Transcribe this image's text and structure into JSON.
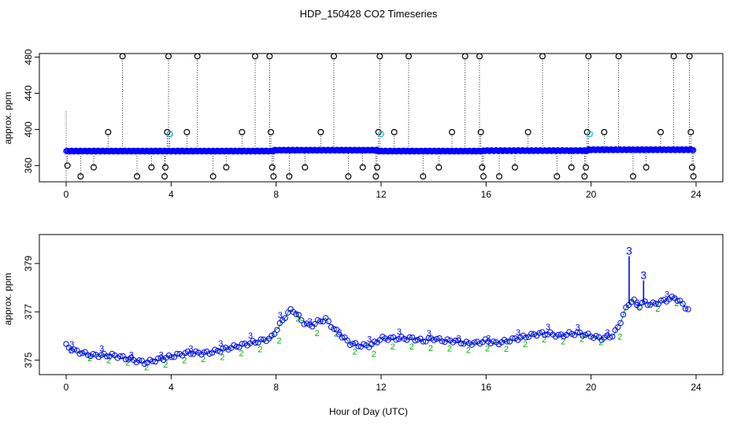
{
  "title": "HDP_150428  CO2 Timeseries",
  "xlabel": "Hour of Day (UTC)",
  "colors": {
    "primary": "#0000ff",
    "secondary": "#00c8c8",
    "outlier": "#000000",
    "series2": "#00b000",
    "series3": "#0000ff"
  },
  "chart_data": [
    {
      "type": "scatter",
      "title": "HDP_150428  CO2 Timeseries",
      "xlabel": "",
      "ylabel": "approx. ppm",
      "xlim": [
        0,
        24
      ],
      "ylim": [
        342,
        484
      ],
      "xticks": [
        "0",
        "4",
        "8",
        "12",
        "16",
        "20",
        "24"
      ],
      "yticks": [
        "360",
        "400",
        "440",
        "480"
      ],
      "xtick_values": [
        0,
        4,
        8,
        12,
        16,
        20,
        24
      ],
      "ytick_values": [
        360,
        400,
        440,
        480
      ],
      "grid": false,
      "baseline": {
        "segments": [
          [
            0.0,
            3.9,
            376
          ],
          [
            3.9,
            7.9,
            376
          ],
          [
            7.9,
            11.9,
            377
          ],
          [
            11.9,
            15.9,
            376
          ],
          [
            15.9,
            19.9,
            376.5
          ],
          [
            19.9,
            23.9,
            377.5
          ]
        ]
      },
      "spikes": {
        "x": [
          0.05,
          0.55,
          1.05,
          1.6,
          2.15,
          2.7,
          3.25,
          3.75,
          3.78,
          3.85,
          3.9,
          3.95,
          4.6,
          5.0,
          5.6,
          6.1,
          6.7,
          7.2,
          7.75,
          7.8,
          7.85,
          7.9,
          8.5,
          9.1,
          9.7,
          10.2,
          10.75,
          11.3,
          11.8,
          11.85,
          11.9,
          11.95,
          12.5,
          13.05,
          13.6,
          14.2,
          14.7,
          15.2,
          15.75,
          15.8,
          15.85,
          15.9,
          16.5,
          17.1,
          17.6,
          18.15,
          18.7,
          19.25,
          19.75,
          19.8,
          19.85,
          19.9,
          20.5,
          21.05,
          21.6,
          22.1,
          22.65,
          23.15,
          23.75,
          23.8,
          23.85,
          23.9
        ],
        "y": [
          360,
          348,
          358,
          397,
          481,
          348,
          358,
          348,
          358,
          397,
          481,
          395,
          397,
          481,
          348,
          358,
          397,
          481,
          481,
          397,
          358,
          348,
          348,
          358,
          397,
          481,
          348,
          358,
          348,
          358,
          397,
          481,
          397,
          481,
          348,
          358,
          397,
          481,
          481,
          397,
          358,
          348,
          348,
          358,
          397,
          481,
          348,
          358,
          348,
          358,
          397,
          481,
          397,
          481,
          348,
          358,
          397,
          481,
          481,
          397,
          358,
          348
        ]
      },
      "cyan_points": {
        "x": [
          3.95,
          12.0,
          19.95
        ],
        "y": [
          395,
          395,
          395
        ]
      }
    },
    {
      "type": "line",
      "title": "",
      "xlabel": "Hour of Day (UTC)",
      "ylabel": "approx. ppm",
      "xlim": [
        0,
        24
      ],
      "ylim": [
        374.4,
        380.2
      ],
      "xticks": [
        "0",
        "4",
        "8",
        "12",
        "16",
        "20",
        "24"
      ],
      "yticks": [
        "375",
        "377",
        "379"
      ],
      "xtick_values": [
        0,
        4,
        8,
        12,
        16,
        20,
        24
      ],
      "ytick_values": [
        375,
        377,
        379
      ],
      "grid": false,
      "markers": [
        "o",
        "2",
        "3"
      ],
      "series": [
        {
          "x": [
            0.0,
            0.3,
            0.6,
            1.0,
            1.4,
            1.8,
            2.2,
            2.6,
            3.0,
            3.4,
            3.8,
            4.2,
            4.6,
            5.0,
            5.4,
            5.8,
            6.2,
            6.6,
            7.0,
            7.4,
            7.8,
            8.1,
            8.4,
            8.6,
            8.8,
            9.0,
            9.3,
            9.6,
            9.9,
            10.2,
            10.5,
            10.8,
            11.2,
            11.6,
            12.0,
            12.4,
            12.8,
            13.2,
            13.6,
            14.0,
            14.4,
            14.8,
            15.2,
            15.6,
            16.0,
            16.4,
            16.8,
            17.2,
            17.6,
            18.0,
            18.4,
            18.8,
            19.2,
            19.6,
            20.0,
            20.4,
            20.8,
            21.0,
            21.2,
            21.4,
            21.6,
            21.8,
            22.0,
            22.3,
            22.6,
            22.9,
            23.2,
            23.5,
            23.7
          ],
          "y": [
            375.6,
            375.4,
            375.3,
            375.2,
            375.2,
            375.2,
            375.1,
            375.0,
            374.9,
            375.0,
            375.1,
            375.2,
            375.3,
            375.3,
            375.3,
            375.4,
            375.5,
            375.6,
            375.7,
            375.8,
            375.9,
            376.4,
            376.9,
            377.1,
            376.9,
            376.6,
            376.4,
            376.6,
            376.7,
            376.3,
            376.0,
            375.7,
            375.6,
            375.6,
            375.9,
            375.9,
            375.9,
            375.9,
            375.8,
            375.9,
            375.8,
            375.8,
            375.7,
            375.7,
            375.8,
            375.7,
            375.8,
            375.9,
            376.0,
            376.1,
            376.1,
            376.0,
            376.1,
            376.1,
            376.0,
            375.9,
            376.0,
            376.3,
            376.8,
            377.3,
            377.5,
            377.2,
            377.4,
            377.3,
            377.4,
            377.5,
            377.6,
            377.3,
            377.1
          ]
        },
        {
          "x": [
            21.45,
            22.0
          ],
          "y": [
            379.3,
            378.3
          ]
        }
      ]
    }
  ]
}
